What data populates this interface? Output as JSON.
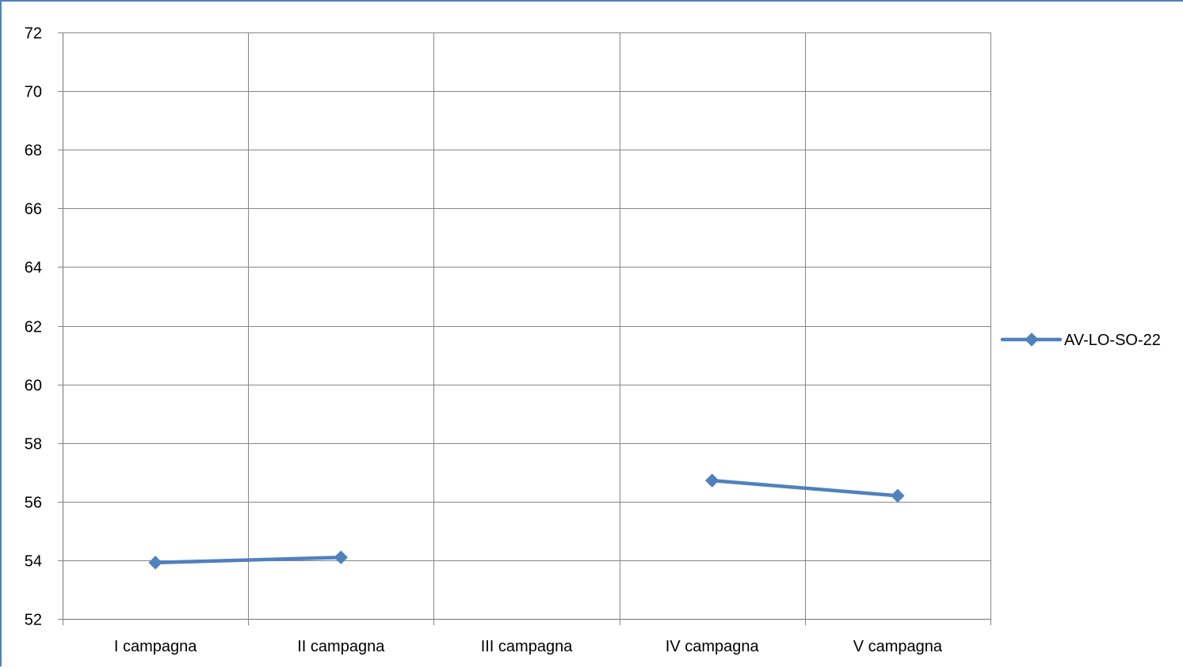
{
  "chart_data": {
    "type": "line",
    "categories": [
      "I campagna",
      "II campagna",
      "III campagna",
      "IV campagna",
      "V campagna"
    ],
    "series": [
      {
        "name": "AV-LO-SO-22",
        "values": [
          53.92,
          54.1,
          null,
          56.72,
          56.2
        ],
        "color": "#4f81bd",
        "marker": "diamond"
      }
    ],
    "ylim": [
      52,
      72
    ],
    "yticks": [
      52,
      54,
      56,
      58,
      60,
      62,
      64,
      66,
      68,
      70,
      72
    ],
    "ytick_labels": [
      "52",
      "54",
      "56",
      "58",
      "60",
      "62",
      "64",
      "66",
      "68",
      "70",
      "72"
    ],
    "grid": true,
    "legend_position": "right",
    "colors": {
      "frame": "#4f81bd",
      "grid": "#868686",
      "axis": "#868686",
      "series": "#4f81bd"
    }
  }
}
